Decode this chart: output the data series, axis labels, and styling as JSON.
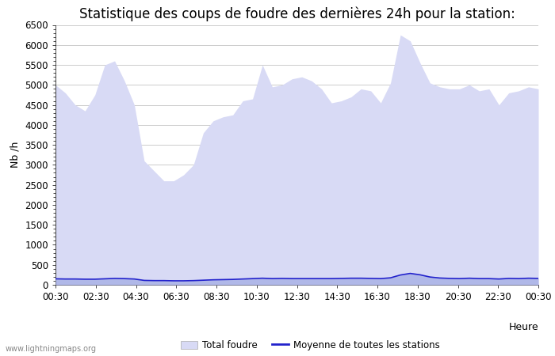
{
  "title": "Statistique des coups de foudre des dernières 24h pour la station:",
  "xlabel": "Heure",
  "ylabel": "Nb /h",
  "ylim": [
    0,
    6500
  ],
  "yticks": [
    0,
    500,
    1000,
    1500,
    2000,
    2500,
    3000,
    3500,
    4000,
    4500,
    5000,
    5500,
    6000,
    6500
  ],
  "xtick_labels": [
    "00:30",
    "02:30",
    "04:30",
    "06:30",
    "08:30",
    "10:30",
    "12:30",
    "14:30",
    "16:30",
    "18:30",
    "20:30",
    "22:30",
    "00:30"
  ],
  "fill_color_total": "#d8daf5",
  "fill_color_detected": "#b0b8e8",
  "line_color": "#2222cc",
  "background_color": "#ffffff",
  "grid_color": "#cccccc",
  "watermark": "www.lightningmaps.org",
  "legend_total": "Total foudre",
  "legend_moyenne": "Moyenne de toutes les stations",
  "total_foudre_y": [
    5000,
    4800,
    4500,
    4350,
    4750,
    5500,
    5600,
    5100,
    4500,
    3100,
    2850,
    2600,
    2600,
    2750,
    3000,
    3800,
    4100,
    4200,
    4250,
    4600,
    4650,
    5500,
    4950,
    5000,
    5150,
    5200,
    5100,
    4900,
    4550,
    4600,
    4700,
    4900,
    4850,
    4550,
    5050,
    6250,
    6100,
    5550,
    5050,
    4950,
    4900,
    4900,
    5000,
    4850,
    4900,
    4500,
    4800,
    4850,
    4950,
    4900
  ],
  "mean_y": [
    150,
    145,
    145,
    140,
    140,
    150,
    160,
    155,
    145,
    110,
    105,
    105,
    100,
    100,
    105,
    115,
    125,
    130,
    135,
    145,
    155,
    165,
    155,
    160,
    155,
    155,
    155,
    155,
    155,
    160,
    165,
    165,
    160,
    155,
    175,
    245,
    285,
    250,
    195,
    170,
    160,
    155,
    165,
    155,
    155,
    145,
    160,
    155,
    165,
    160
  ],
  "title_fontsize": 12,
  "axis_fontsize": 9,
  "tick_fontsize": 8.5
}
